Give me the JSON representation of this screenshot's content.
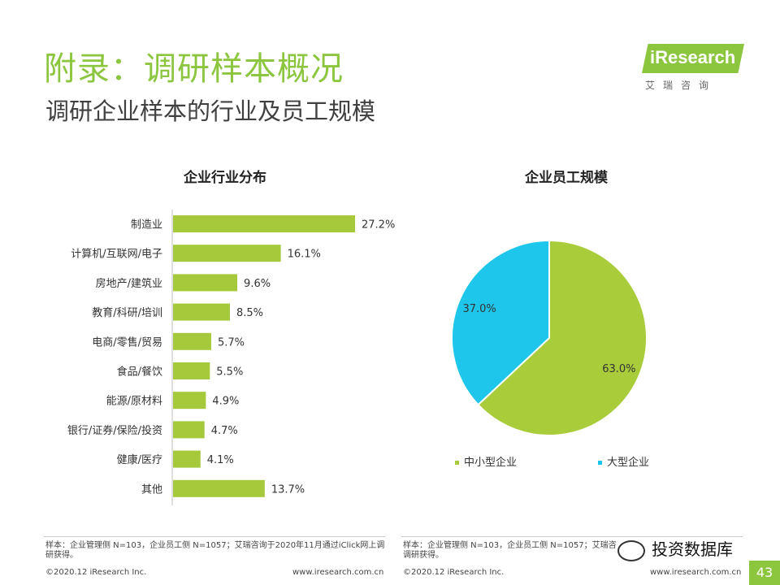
{
  "header": {
    "title": "附录：调研样本概况",
    "subtitle": "调研企业样本的行业及员工规模"
  },
  "logo": {
    "brand": "iResearch",
    "cn": "艾瑞咨询"
  },
  "colors": {
    "accent": "#8cc63f",
    "bar": "#a5c93b",
    "pie_small": "#a8cc3a",
    "pie_large": "#1ec6ec"
  },
  "chart_data": [
    {
      "type": "bar",
      "orientation": "horizontal",
      "title": "企业行业分布",
      "categories": [
        "制造业",
        "计算机/互联网/电子",
        "房地产/建筑业",
        "教育/科研/培训",
        "电商/零售/贸易",
        "食品/餐饮",
        "能源/原材料",
        "银行/证券/保险/投资",
        "健康/医疗",
        "其他"
      ],
      "values": [
        27.2,
        16.1,
        9.6,
        8.5,
        5.7,
        5.5,
        4.9,
        4.7,
        4.1,
        13.7
      ],
      "labels": [
        "27.2%",
        "16.1%",
        "9.6%",
        "8.5%",
        "5.7%",
        "5.5%",
        "4.9%",
        "4.7%",
        "4.1%",
        "13.7%"
      ],
      "unit": "%",
      "xlim": [
        0,
        27.2
      ],
      "grid": false
    },
    {
      "type": "pie",
      "title": "企业员工规模",
      "categories": [
        "中小型企业",
        "大型企业"
      ],
      "values": [
        63.0,
        37.0
      ],
      "labels": [
        "63.0%",
        "37.0%"
      ],
      "legend_position": "bottom"
    }
  ],
  "footnotes": {
    "left": "样本：企业管理侧 N=103，企业员工侧 N=1057；艾瑞咨询于2020年11月通过iClick网上调研获得。",
    "right_visible": "样本：企业管理侧 N=103，企业员工侧 N=1057；艾瑞咨",
    "right_cont": "调研获得。"
  },
  "footer": {
    "copyright": "©2020.12 iResearch Inc.",
    "url": "www.iresearch.com.cn",
    "page": "43"
  },
  "watermark": {
    "text": "投资数据库"
  }
}
